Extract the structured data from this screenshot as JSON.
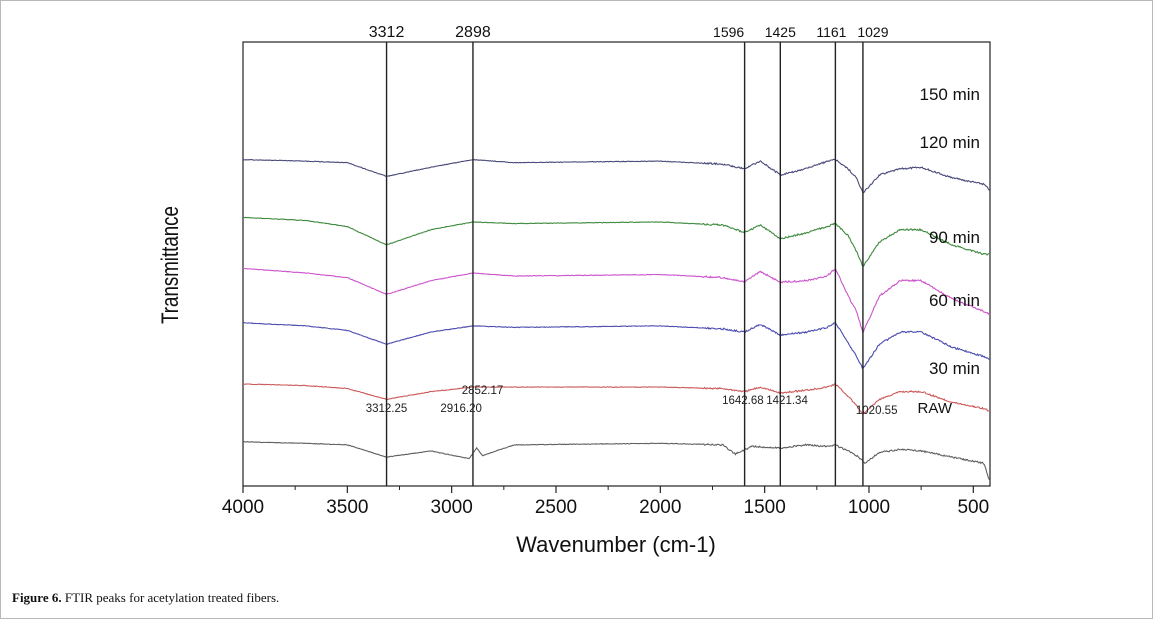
{
  "chart_data": {
    "type": "line",
    "xlabel": "Wavenumber (cm-1)",
    "ylabel": "Transmittance",
    "xlim": [
      4000,
      420
    ],
    "x_ticks": [
      4000,
      3500,
      3000,
      2500,
      2000,
      1500,
      1000,
      500
    ],
    "x_tick_labels": [
      "4000",
      "3500",
      "3000",
      "2500",
      "2000",
      "1500",
      "1000",
      "500"
    ],
    "grid": false,
    "vertical_lines": [
      {
        "x": 3312,
        "label": "3312"
      },
      {
        "x": 2898,
        "label": "2898"
      },
      {
        "x": 1596,
        "label": "1596"
      },
      {
        "x": 1425,
        "label": "1425"
      },
      {
        "x": 1161,
        "label": "1161"
      },
      {
        "x": 1029,
        "label": "1029"
      }
    ],
    "raw_peak_labels": [
      {
        "x": 3312.25,
        "label": "3312.25"
      },
      {
        "x": 2916.2,
        "label": "2916.20"
      },
      {
        "x": 2852.17,
        "label": "2852.17"
      },
      {
        "x": 1642.68,
        "label": "1642.68"
      },
      {
        "x": 1421.34,
        "label": "1421.34"
      },
      {
        "x": 1020.55,
        "label": "1020.55"
      }
    ],
    "series": [
      {
        "name": "150 min",
        "color": "#4a4a7a",
        "offset": 96,
        "points": [
          [
            4000,
            0
          ],
          [
            3700,
            1
          ],
          [
            3500,
            2
          ],
          [
            3312,
            11
          ],
          [
            3100,
            5
          ],
          [
            2898,
            0
          ],
          [
            2700,
            2
          ],
          [
            2000,
            1
          ],
          [
            1700,
            3
          ],
          [
            1596,
            6
          ],
          [
            1520,
            1
          ],
          [
            1425,
            10
          ],
          [
            1300,
            6
          ],
          [
            1200,
            1
          ],
          [
            1161,
            0
          ],
          [
            1100,
            6
          ],
          [
            1060,
            12
          ],
          [
            1029,
            22
          ],
          [
            950,
            10
          ],
          [
            850,
            6
          ],
          [
            750,
            5
          ],
          [
            600,
            12
          ],
          [
            450,
            16
          ],
          [
            420,
            20
          ]
        ]
      },
      {
        "name": "120 min",
        "color": "#3f8a3f",
        "offset": 79,
        "points": [
          [
            4000,
            0
          ],
          [
            3700,
            2
          ],
          [
            3500,
            6
          ],
          [
            3312,
            18
          ],
          [
            3100,
            8
          ],
          [
            2898,
            3
          ],
          [
            2700,
            4
          ],
          [
            2000,
            3
          ],
          [
            1700,
            5
          ],
          [
            1596,
            10
          ],
          [
            1520,
            5
          ],
          [
            1425,
            14
          ],
          [
            1300,
            10
          ],
          [
            1200,
            6
          ],
          [
            1161,
            4
          ],
          [
            1100,
            12
          ],
          [
            1060,
            22
          ],
          [
            1029,
            32
          ],
          [
            950,
            16
          ],
          [
            850,
            8
          ],
          [
            750,
            8
          ],
          [
            600,
            18
          ],
          [
            450,
            24
          ],
          [
            420,
            24
          ]
        ]
      },
      {
        "name": "90 min",
        "color": "#cc55cc",
        "offset": 64,
        "points": [
          [
            4000,
            0
          ],
          [
            3700,
            3
          ],
          [
            3500,
            6
          ],
          [
            3312,
            17
          ],
          [
            3100,
            8
          ],
          [
            2898,
            3
          ],
          [
            2700,
            5
          ],
          [
            2000,
            4
          ],
          [
            1700,
            6
          ],
          [
            1596,
            9
          ],
          [
            1520,
            2
          ],
          [
            1425,
            9
          ],
          [
            1300,
            8
          ],
          [
            1200,
            5
          ],
          [
            1161,
            0
          ],
          [
            1100,
            18
          ],
          [
            1060,
            28
          ],
          [
            1029,
            42
          ],
          [
            950,
            18
          ],
          [
            850,
            8
          ],
          [
            750,
            8
          ],
          [
            600,
            20
          ],
          [
            450,
            28
          ],
          [
            420,
            30
          ]
        ]
      },
      {
        "name": "60 min",
        "color": "#4b4bb0",
        "offset": 48,
        "points": [
          [
            4000,
            0
          ],
          [
            3700,
            2
          ],
          [
            3500,
            5
          ],
          [
            3312,
            14
          ],
          [
            3100,
            6
          ],
          [
            2898,
            2
          ],
          [
            2700,
            3
          ],
          [
            2000,
            2
          ],
          [
            1700,
            4
          ],
          [
            1596,
            6
          ],
          [
            1520,
            1
          ],
          [
            1425,
            8
          ],
          [
            1300,
            6
          ],
          [
            1200,
            3
          ],
          [
            1161,
            0
          ],
          [
            1100,
            13
          ],
          [
            1060,
            22
          ],
          [
            1029,
            30
          ],
          [
            950,
            14
          ],
          [
            850,
            6
          ],
          [
            750,
            6
          ],
          [
            600,
            16
          ],
          [
            450,
            22
          ],
          [
            420,
            24
          ]
        ]
      },
      {
        "name": "30 min",
        "color": "#cc5a5a",
        "offset": 30,
        "points": [
          [
            4000,
            0
          ],
          [
            3700,
            1
          ],
          [
            3500,
            3
          ],
          [
            3312,
            10
          ],
          [
            3100,
            5
          ],
          [
            2898,
            2
          ],
          [
            2700,
            2
          ],
          [
            2000,
            2
          ],
          [
            1700,
            3
          ],
          [
            1596,
            5
          ],
          [
            1520,
            2
          ],
          [
            1425,
            6
          ],
          [
            1300,
            4
          ],
          [
            1200,
            2
          ],
          [
            1161,
            0
          ],
          [
            1100,
            8
          ],
          [
            1060,
            14
          ],
          [
            1029,
            20
          ],
          [
            950,
            10
          ],
          [
            850,
            5
          ],
          [
            750,
            5
          ],
          [
            600,
            12
          ],
          [
            450,
            16
          ],
          [
            420,
            18
          ]
        ]
      },
      {
        "name": "RAW",
        "color": "#606060",
        "offset": 13,
        "points": [
          [
            4000,
            0
          ],
          [
            3700,
            1
          ],
          [
            3500,
            2
          ],
          [
            3312,
            10
          ],
          [
            3100,
            6
          ],
          [
            2916,
            11
          ],
          [
            2880,
            4
          ],
          [
            2852,
            9
          ],
          [
            2700,
            2
          ],
          [
            2000,
            1
          ],
          [
            1700,
            2
          ],
          [
            1642,
            8
          ],
          [
            1560,
            3
          ],
          [
            1421,
            4
          ],
          [
            1300,
            2
          ],
          [
            1200,
            3
          ],
          [
            1161,
            2
          ],
          [
            1100,
            6
          ],
          [
            1060,
            9
          ],
          [
            1020,
            14
          ],
          [
            950,
            7
          ],
          [
            850,
            5
          ],
          [
            750,
            6
          ],
          [
            600,
            10
          ],
          [
            450,
            14
          ],
          [
            420,
            26
          ]
        ]
      }
    ]
  },
  "caption": {
    "label": "Figure 6.",
    "text": " FTIR peaks for acetylation treated fibers."
  }
}
